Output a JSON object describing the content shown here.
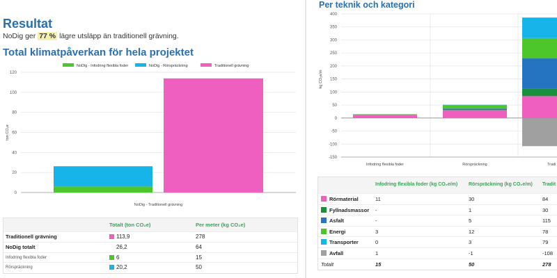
{
  "left": {
    "result_title": "Resultat",
    "result_prefix": "NoDig ger",
    "result_pct": "77 %",
    "result_suffix": "lägre utsläpp än traditionell grävning.",
    "heading": "Total klimatpåverkan för hela projektet"
  },
  "right": {
    "heading": "Per teknik och kategori"
  },
  "colors": {
    "green": "#4cc62a",
    "cyan": "#16b4e8",
    "pink": "#ee5fc0",
    "dark_green": "#1a8f3c",
    "blue": "#2474c2",
    "grey": "#a0a0a0"
  },
  "chart_data": [
    {
      "type": "bar",
      "stacked": true,
      "title": "Total klimatpåverkan för hela projektet",
      "ylabel": "ton CO₂e",
      "xlabel": "NoDig - Traditionell grävning",
      "ylim": [
        0,
        120
      ],
      "yticks": [
        0,
        20,
        40,
        60,
        80,
        100,
        120
      ],
      "legend_position": "top",
      "series": [
        {
          "name": "NoDig - Infodring flexibla foder",
          "color": "#4cc62a",
          "values": [
            6,
            0
          ]
        },
        {
          "name": "NoDig - Rörspräckning",
          "color": "#16b4e8",
          "values": [
            20.2,
            0
          ]
        },
        {
          "name": "Traditionell grävning",
          "color": "#ee5fc0",
          "values": [
            0,
            113.9
          ]
        }
      ]
    },
    {
      "type": "bar",
      "stacked": true,
      "title": "Per teknik och kategori",
      "ylabel": "kg CO₂e/m",
      "ylim": [
        -150,
        400
      ],
      "yticks": [
        -150,
        -100,
        -50,
        0,
        50,
        100,
        150,
        200,
        250,
        300,
        350,
        400
      ],
      "categories": [
        "Infodring flexibla foder",
        "Rörspräckning",
        "Tradi"
      ],
      "series": [
        {
          "name": "Rörmaterial",
          "color": "#ee5fc0",
          "values": [
            11,
            30,
            84
          ]
        },
        {
          "name": "Fyllnadsmassor",
          "color": "#1a8f3c",
          "values": [
            0,
            1,
            30
          ]
        },
        {
          "name": "Asfalt",
          "color": "#2474c2",
          "values": [
            0,
            5,
            115
          ]
        },
        {
          "name": "Energi",
          "color": "#4cc62a",
          "values": [
            3,
            12,
            78
          ]
        },
        {
          "name": "Transporter",
          "color": "#16b4e8",
          "values": [
            0,
            3,
            79
          ]
        },
        {
          "name": "Avfall",
          "color": "#a0a0a0",
          "values": [
            1,
            -1,
            -108
          ]
        }
      ]
    }
  ],
  "left_table": {
    "headers": [
      "",
      "Totalt (ton CO₂e)",
      "Per meter (kg CO₂e)"
    ],
    "rows": [
      {
        "label": "Traditionell grävning",
        "total": "113,9",
        "per_meter": "278",
        "swatch": "#ee5fc0"
      },
      {
        "label": "NoDig totalt",
        "total": "26,2",
        "per_meter": "64",
        "swatch": ""
      },
      {
        "label": "Infodring flexibla foder",
        "total": "6",
        "per_meter": "15",
        "swatch": "#4cc62a"
      },
      {
        "label": "Rörspräckning",
        "total": "20,2",
        "per_meter": "50",
        "swatch": "#16b4e8"
      }
    ]
  },
  "right_table": {
    "headers": [
      "",
      "Infodring flexibla foder (kg CO₂e/m)",
      "Rörspräckning (kg CO₂e/m)",
      "Tradit"
    ],
    "rows": [
      {
        "label": "Rörmaterial",
        "v1": "11",
        "v2": "30",
        "v3": "84",
        "swatch": "#ee5fc0"
      },
      {
        "label": "Fyllnadsmassor",
        "v1": "-",
        "v2": "1",
        "v3": "30",
        "swatch": "#1a8f3c"
      },
      {
        "label": "Asfalt",
        "v1": "-",
        "v2": "5",
        "v3": "115",
        "swatch": "#2474c2"
      },
      {
        "label": "Energi",
        "v1": "3",
        "v2": "12",
        "v3": "78",
        "swatch": "#4cc62a"
      },
      {
        "label": "Transporter",
        "v1": "0",
        "v2": "3",
        "v3": "79",
        "swatch": "#16b4e8"
      },
      {
        "label": "Avfall",
        "v1": "1",
        "v2": "-1",
        "v3": "-108",
        "swatch": "#a0a0a0"
      },
      {
        "label": "Totalt",
        "v1": "15",
        "v2": "50",
        "v3": "278",
        "swatch": ""
      }
    ]
  }
}
